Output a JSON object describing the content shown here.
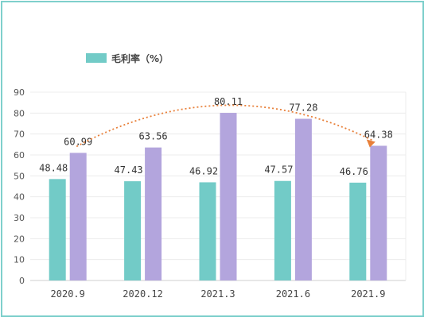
{
  "chart_data": {
    "type": "bar",
    "title": "",
    "categories": [
      "2020.9",
      "2020.12",
      "2021.3",
      "2021.6",
      "2021.9"
    ],
    "series": [
      {
        "name": "毛利率（%）",
        "values": [
          48.48,
          47.43,
          46.92,
          47.57,
          46.76
        ],
        "color": "#72cbc7"
      },
      {
        "name": "",
        "values": [
          60.99,
          63.56,
          80.11,
          77.28,
          64.38
        ],
        "color": "#b3a5dd"
      }
    ],
    "data_labels": {
      "series0": [
        "48.48",
        "47.43",
        "46.92",
        "47.57",
        "46.76"
      ],
      "series1": [
        "60.99",
        "63.56",
        "80.11",
        "77.28",
        "64.38"
      ]
    },
    "ylim": [
      0,
      90
    ],
    "yticks": [
      "0",
      "10",
      "20",
      "30",
      "40",
      "50",
      "60",
      "70",
      "80",
      "90"
    ],
    "grid": true,
    "legend_position": "top-left",
    "annotation": {
      "type": "dotted-arrow",
      "color": "#e8803a",
      "from_category": "2020.9",
      "to_category": "2021.9"
    },
    "xlabel": "",
    "ylabel": ""
  }
}
